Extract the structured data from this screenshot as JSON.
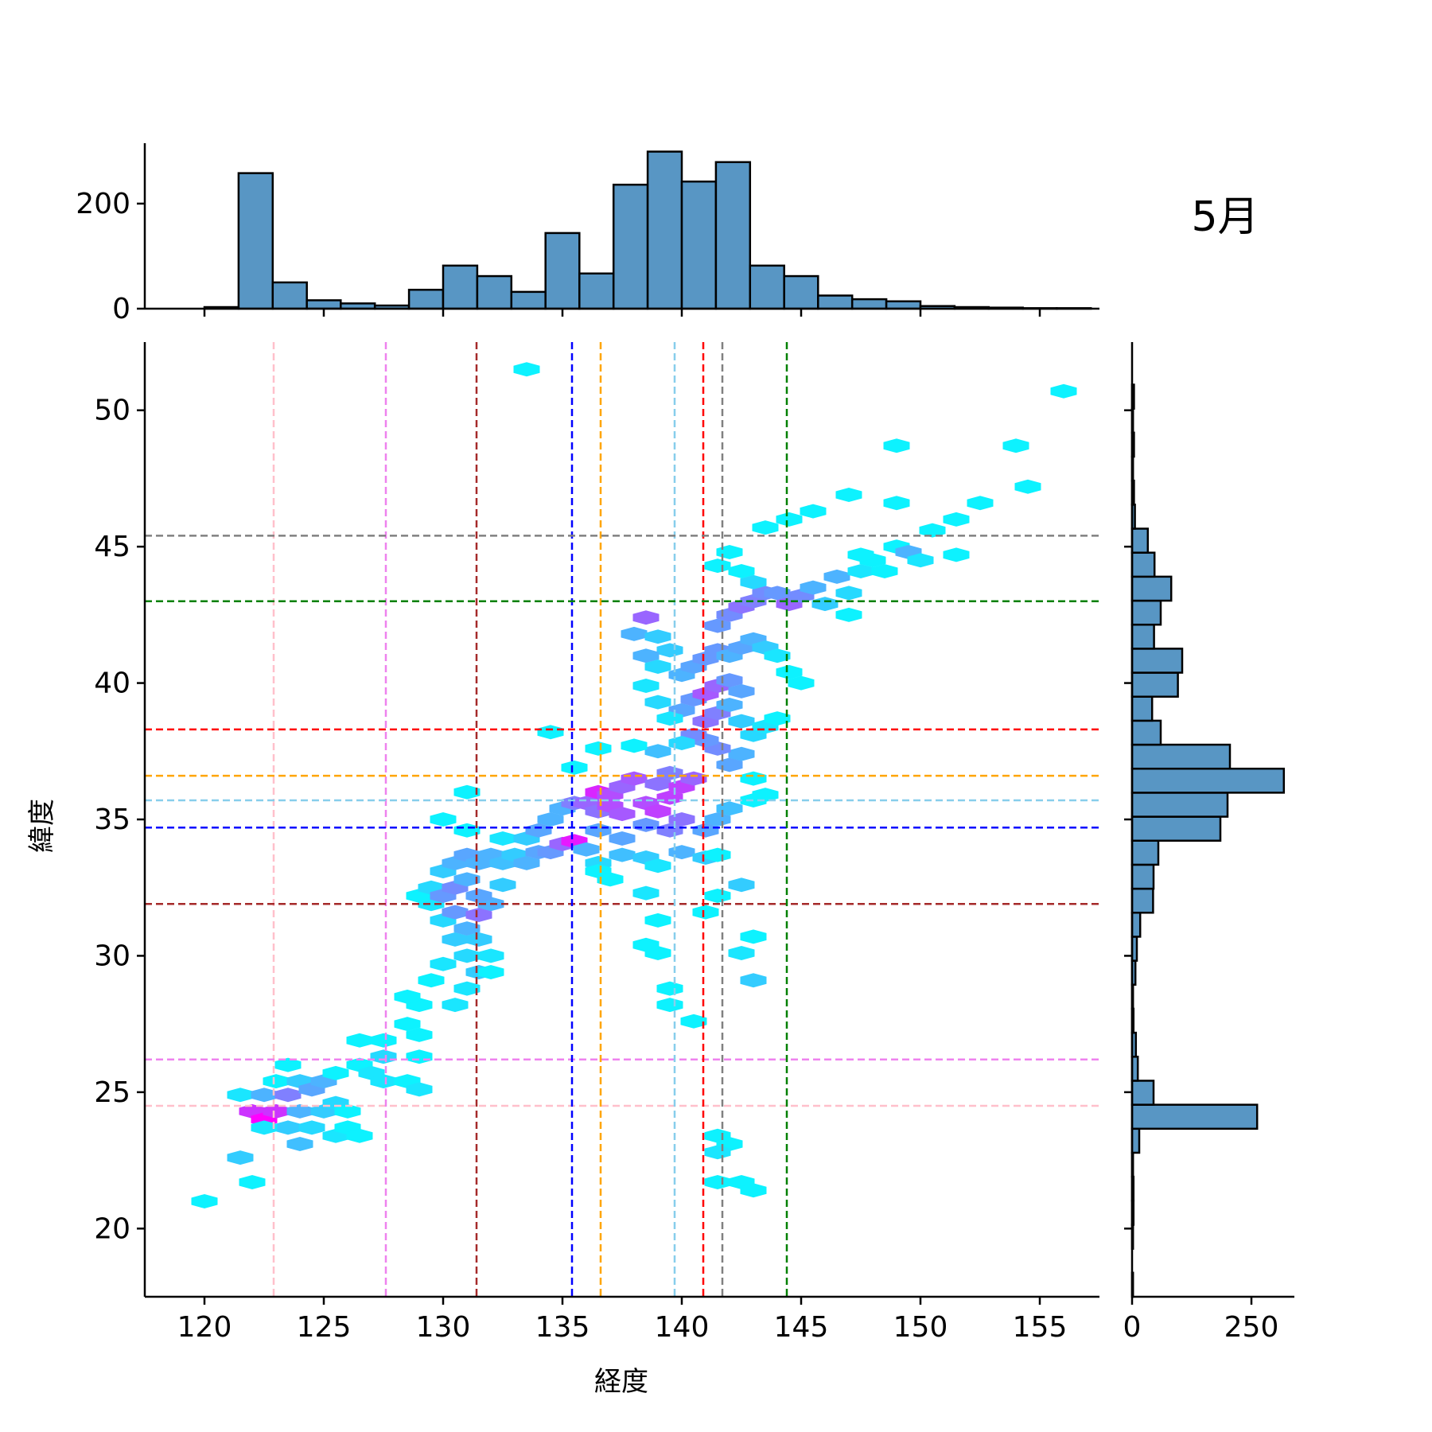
{
  "chart_data": {
    "type": "heatmap",
    "subtype": "jointplot-hexbin-with-marginal-histograms",
    "panel_label": "5月",
    "xlabel": "経度",
    "ylabel": "緯度",
    "xlim": [
      117.5,
      157.5
    ],
    "ylim": [
      17.5,
      52.5
    ],
    "xticks": [
      "120",
      "125",
      "130",
      "135",
      "140",
      "145",
      "150",
      "155"
    ],
    "yticks": [
      "20",
      "25",
      "30",
      "35",
      "40",
      "45",
      "50"
    ],
    "grid": false,
    "colormap": "cool",
    "colors": {
      "bar_fill": "#5896c4",
      "bar_edge": "#000000",
      "low": "#00ffff",
      "high": "#ff00ff"
    },
    "top_histogram": {
      "yticks": [
        "0",
        "200"
      ],
      "ylim": [
        0,
        315
      ],
      "bin_edges": [
        120.0,
        121.43,
        122.86,
        124.29,
        125.71,
        127.14,
        128.57,
        130.0,
        131.43,
        132.86,
        134.29,
        135.71,
        137.14,
        138.57,
        140.0,
        141.43,
        142.86,
        144.29,
        145.71,
        147.14,
        148.57,
        150.0,
        151.43,
        152.86,
        154.29,
        155.71,
        157.14
      ],
      "counts": [
        3,
        258,
        50,
        16,
        10,
        6,
        36,
        82,
        62,
        32,
        144,
        67,
        236,
        299,
        242,
        279,
        82,
        62,
        25,
        18,
        14,
        5,
        3,
        2,
        1,
        1
      ]
    },
    "right_histogram": {
      "xticks": [
        "0",
        "250"
      ],
      "xlim": [
        0,
        340
      ],
      "bin_edges": [
        17.5,
        18.38,
        19.26,
        20.14,
        21.02,
        21.9,
        22.78,
        23.66,
        24.54,
        25.42,
        26.3,
        27.18,
        28.06,
        28.94,
        29.82,
        30.7,
        31.58,
        32.46,
        33.34,
        34.22,
        35.1,
        35.98,
        36.86,
        37.74,
        38.62,
        39.5,
        40.38,
        41.26,
        42.14,
        43.02,
        43.9,
        44.78,
        45.66,
        46.54,
        47.42,
        48.3,
        49.18,
        50.06,
        50.94
      ],
      "counts": [
        2,
        0,
        2,
        3,
        3,
        2,
        15,
        262,
        45,
        12,
        8,
        3,
        2,
        7,
        10,
        17,
        44,
        45,
        55,
        185,
        200,
        318,
        205,
        60,
        42,
        96,
        105,
        46,
        60,
        82,
        47,
        33,
        6,
        4,
        2,
        4,
        2,
        4
      ]
    },
    "reference_lines": [
      {
        "color": "#ffc0cb",
        "lon": 122.9,
        "lat": 24.5
      },
      {
        "color": "#ee82ee",
        "lon": 127.6,
        "lat": 26.2
      },
      {
        "color": "#a52a2a",
        "lon": 131.4,
        "lat": 31.9
      },
      {
        "color": "#0000ff",
        "lon": 135.4,
        "lat": 34.7
      },
      {
        "color": "#ffa500",
        "lon": 136.6,
        "lat": 36.6
      },
      {
        "color": "#87ceeb",
        "lon": 139.7,
        "lat": 35.7
      },
      {
        "color": "#ff0000",
        "lon": 140.9,
        "lat": 38.3
      },
      {
        "color": "#808080",
        "lon": 141.7,
        "lat": 45.4
      },
      {
        "color": "#008000",
        "lon": 144.4,
        "lat": 43.0
      }
    ],
    "hexbin_points": [
      [
        120.0,
        21.0,
        0.05
      ],
      [
        122.0,
        21.7,
        0.05
      ],
      [
        121.5,
        22.6,
        0.2
      ],
      [
        121.5,
        24.9,
        0.1
      ],
      [
        122.0,
        24.3,
        0.8
      ],
      [
        122.5,
        24.0,
        1.0
      ],
      [
        123.0,
        24.3,
        0.8
      ],
      [
        122.5,
        24.9,
        0.3
      ],
      [
        123.5,
        24.9,
        0.5
      ],
      [
        123.0,
        25.4,
        0.05
      ],
      [
        124.0,
        25.4,
        0.2
      ],
      [
        124.5,
        25.1,
        0.35
      ],
      [
        125.0,
        25.4,
        0.3
      ],
      [
        124.0,
        24.3,
        0.3
      ],
      [
        125.0,
        24.3,
        0.2
      ],
      [
        125.5,
        24.6,
        0.15
      ],
      [
        123.5,
        23.7,
        0.2
      ],
      [
        124.5,
        23.7,
        0.15
      ],
      [
        122.5,
        23.7,
        0.1
      ],
      [
        124.0,
        23.1,
        0.25
      ],
      [
        125.5,
        23.4,
        0.1
      ],
      [
        126.0,
        23.7,
        0.05
      ],
      [
        126.5,
        23.4,
        0.05
      ],
      [
        126.0,
        24.3,
        0.05
      ],
      [
        123.5,
        26.0,
        0.05
      ],
      [
        125.5,
        25.7,
        0.05
      ],
      [
        126.5,
        26.0,
        0.05
      ],
      [
        127.0,
        25.7,
        0.1
      ],
      [
        127.5,
        25.4,
        0.1
      ],
      [
        128.5,
        25.4,
        0.05
      ],
      [
        129.0,
        25.1,
        0.1
      ],
      [
        126.5,
        26.9,
        0.05
      ],
      [
        127.5,
        26.9,
        0.05
      ],
      [
        127.5,
        26.3,
        0.15
      ],
      [
        129.0,
        26.3,
        0.05
      ],
      [
        129.0,
        27.1,
        0.05
      ],
      [
        128.5,
        27.5,
        0.05
      ],
      [
        129.0,
        28.2,
        0.05
      ],
      [
        128.5,
        28.5,
        0.05
      ],
      [
        129.5,
        29.1,
        0.05
      ],
      [
        130.0,
        29.7,
        0.1
      ],
      [
        130.5,
        28.2,
        0.1
      ],
      [
        131.0,
        28.8,
        0.1
      ],
      [
        131.5,
        29.4,
        0.2
      ],
      [
        132.0,
        29.4,
        0.05
      ],
      [
        131.0,
        30.0,
        0.15
      ],
      [
        132.0,
        30.0,
        0.1
      ],
      [
        130.5,
        30.6,
        0.2
      ],
      [
        131.0,
        31.0,
        0.3
      ],
      [
        131.5,
        30.6,
        0.2
      ],
      [
        130.0,
        31.3,
        0.15
      ],
      [
        130.5,
        31.6,
        0.4
      ],
      [
        131.5,
        31.5,
        0.55
      ],
      [
        132.0,
        31.9,
        0.3
      ],
      [
        129.5,
        31.9,
        0.1
      ],
      [
        129.0,
        32.2,
        0.05
      ],
      [
        129.5,
        32.5,
        0.15
      ],
      [
        130.0,
        32.2,
        0.4
      ],
      [
        130.5,
        32.5,
        0.45
      ],
      [
        131.0,
        32.8,
        0.3
      ],
      [
        131.5,
        32.2,
        0.35
      ],
      [
        132.5,
        32.6,
        0.2
      ],
      [
        130.0,
        33.1,
        0.2
      ],
      [
        130.5,
        33.4,
        0.3
      ],
      [
        131.0,
        33.7,
        0.35
      ],
      [
        131.5,
        33.4,
        0.3
      ],
      [
        132.0,
        33.7,
        0.3
      ],
      [
        132.5,
        33.4,
        0.25
      ],
      [
        133.0,
        33.7,
        0.2
      ],
      [
        133.5,
        33.4,
        0.3
      ],
      [
        134.0,
        33.8,
        0.35
      ],
      [
        134.5,
        33.8,
        0.4
      ],
      [
        135.0,
        34.1,
        0.6
      ],
      [
        135.5,
        34.2,
        0.9
      ],
      [
        132.5,
        34.3,
        0.1
      ],
      [
        133.5,
        34.3,
        0.2
      ],
      [
        134.0,
        34.6,
        0.35
      ],
      [
        134.5,
        35.0,
        0.3
      ],
      [
        131.0,
        34.6,
        0.05
      ],
      [
        130.0,
        35.0,
        0.05
      ],
      [
        131.0,
        36.0,
        0.05
      ],
      [
        135.0,
        35.4,
        0.3
      ],
      [
        135.5,
        35.6,
        0.5
      ],
      [
        136.0,
        35.6,
        0.6
      ],
      [
        136.5,
        35.3,
        0.55
      ],
      [
        136.5,
        36.0,
        0.85
      ],
      [
        137.0,
        35.5,
        0.7
      ],
      [
        137.5,
        35.2,
        0.65
      ],
      [
        137.0,
        35.9,
        0.7
      ],
      [
        137.5,
        36.2,
        0.6
      ],
      [
        138.0,
        36.5,
        0.65
      ],
      [
        138.5,
        35.6,
        0.7
      ],
      [
        139.0,
        35.3,
        0.75
      ],
      [
        139.5,
        35.8,
        0.75
      ],
      [
        139.0,
        36.3,
        0.55
      ],
      [
        139.5,
        36.7,
        0.5
      ],
      [
        140.0,
        36.2,
        0.75
      ],
      [
        140.5,
        36.5,
        0.6
      ],
      [
        140.0,
        35.0,
        0.55
      ],
      [
        139.5,
        34.6,
        0.5
      ],
      [
        138.5,
        34.8,
        0.4
      ],
      [
        137.5,
        34.3,
        0.35
      ],
      [
        136.5,
        34.6,
        0.35
      ],
      [
        136.0,
        33.9,
        0.3
      ],
      [
        136.5,
        33.4,
        0.15
      ],
      [
        137.5,
        33.7,
        0.25
      ],
      [
        138.5,
        33.6,
        0.2
      ],
      [
        139.0,
        33.3,
        0.1
      ],
      [
        140.0,
        33.8,
        0.3
      ],
      [
        141.0,
        33.6,
        0.2
      ],
      [
        141.5,
        33.7,
        0.05
      ],
      [
        141.0,
        34.6,
        0.35
      ],
      [
        141.5,
        35.0,
        0.3
      ],
      [
        142.0,
        35.4,
        0.25
      ],
      [
        143.0,
        35.7,
        0.05
      ],
      [
        143.5,
        35.9,
        0.05
      ],
      [
        143.0,
        36.5,
        0.05
      ],
      [
        142.0,
        37.0,
        0.35
      ],
      [
        142.5,
        37.4,
        0.3
      ],
      [
        141.5,
        37.6,
        0.45
      ],
      [
        141.0,
        37.9,
        0.4
      ],
      [
        140.5,
        38.1,
        0.45
      ],
      [
        141.0,
        38.6,
        0.55
      ],
      [
        141.5,
        38.9,
        0.5
      ],
      [
        140.0,
        39.0,
        0.35
      ],
      [
        140.5,
        39.4,
        0.4
      ],
      [
        141.0,
        39.6,
        0.65
      ],
      [
        141.5,
        39.9,
        0.6
      ],
      [
        142.0,
        40.1,
        0.4
      ],
      [
        142.5,
        39.7,
        0.35
      ],
      [
        142.0,
        39.2,
        0.3
      ],
      [
        142.5,
        38.6,
        0.2
      ],
      [
        143.0,
        38.1,
        0.15
      ],
      [
        143.5,
        38.4,
        0.1
      ],
      [
        144.0,
        38.7,
        0.05
      ],
      [
        140.0,
        40.3,
        0.3
      ],
      [
        140.5,
        40.6,
        0.35
      ],
      [
        141.0,
        40.9,
        0.4
      ],
      [
        141.5,
        41.2,
        0.4
      ],
      [
        142.0,
        41.0,
        0.3
      ],
      [
        142.5,
        41.3,
        0.35
      ],
      [
        143.0,
        41.6,
        0.3
      ],
      [
        143.5,
        41.3,
        0.2
      ],
      [
        144.0,
        41.0,
        0.1
      ],
      [
        144.5,
        40.4,
        0.05
      ],
      [
        145.0,
        40.0,
        0.05
      ],
      [
        138.5,
        42.4,
        0.6
      ],
      [
        138.0,
        41.8,
        0.3
      ],
      [
        139.0,
        41.7,
        0.2
      ],
      [
        139.5,
        41.2,
        0.2
      ],
      [
        138.5,
        41.0,
        0.3
      ],
      [
        139.0,
        40.6,
        0.15
      ],
      [
        138.5,
        39.9,
        0.1
      ],
      [
        139.0,
        39.3,
        0.15
      ],
      [
        139.5,
        38.7,
        0.1
      ],
      [
        140.0,
        37.8,
        0.15
      ],
      [
        139.0,
        37.5,
        0.25
      ],
      [
        138.0,
        37.7,
        0.05
      ],
      [
        136.5,
        37.6,
        0.05
      ],
      [
        135.5,
        36.9,
        0.05
      ],
      [
        134.5,
        38.2,
        0.05
      ],
      [
        141.5,
        42.1,
        0.4
      ],
      [
        142.0,
        42.5,
        0.45
      ],
      [
        142.5,
        42.8,
        0.55
      ],
      [
        143.0,
        43.0,
        0.5
      ],
      [
        143.5,
        43.3,
        0.45
      ],
      [
        144.0,
        43.3,
        0.4
      ],
      [
        144.5,
        42.9,
        0.6
      ],
      [
        145.0,
        43.2,
        0.45
      ],
      [
        145.5,
        43.5,
        0.3
      ],
      [
        146.0,
        42.9,
        0.2
      ],
      [
        146.5,
        43.9,
        0.3
      ],
      [
        147.0,
        43.3,
        0.15
      ],
      [
        143.0,
        43.7,
        0.15
      ],
      [
        142.5,
        44.1,
        0.05
      ],
      [
        141.5,
        44.3,
        0.05
      ],
      [
        142.0,
        44.8,
        0.05
      ],
      [
        147.5,
        44.1,
        0.1
      ],
      [
        148.0,
        44.5,
        0.05
      ],
      [
        147.0,
        42.5,
        0.05
      ],
      [
        148.5,
        44.1,
        0.05
      ],
      [
        149.0,
        45.0,
        0.05
      ],
      [
        149.5,
        44.8,
        0.3
      ],
      [
        150.0,
        44.5,
        0.1
      ],
      [
        151.5,
        44.7,
        0.05
      ],
      [
        147.5,
        44.7,
        0.05
      ],
      [
        143.5,
        45.7,
        0.05
      ],
      [
        144.5,
        46.0,
        0.05
      ],
      [
        145.5,
        46.3,
        0.05
      ],
      [
        147.0,
        46.9,
        0.05
      ],
      [
        149.0,
        46.6,
        0.05
      ],
      [
        150.5,
        45.6,
        0.05
      ],
      [
        151.5,
        46.0,
        0.05
      ],
      [
        152.5,
        46.6,
        0.05
      ],
      [
        154.5,
        47.2,
        0.05
      ],
      [
        149.0,
        48.7,
        0.05
      ],
      [
        154.0,
        48.7,
        0.05
      ],
      [
        156.0,
        50.7,
        0.05
      ],
      [
        133.5,
        51.5,
        0.05
      ],
      [
        136.5,
        33.1,
        0.05
      ],
      [
        137.0,
        32.8,
        0.05
      ],
      [
        138.5,
        32.3,
        0.1
      ],
      [
        141.5,
        32.2,
        0.05
      ],
      [
        142.5,
        32.6,
        0.2
      ],
      [
        141.0,
        31.6,
        0.05
      ],
      [
        139.0,
        31.3,
        0.05
      ],
      [
        143.0,
        30.7,
        0.05
      ],
      [
        142.5,
        30.1,
        0.1
      ],
      [
        143.0,
        29.1,
        0.2
      ],
      [
        139.0,
        30.1,
        0.05
      ],
      [
        138.5,
        30.4,
        0.05
      ],
      [
        139.5,
        28.8,
        0.05
      ],
      [
        139.5,
        28.2,
        0.05
      ],
      [
        140.5,
        27.6,
        0.05
      ],
      [
        141.5,
        23.4,
        0.05
      ],
      [
        142.0,
        23.1,
        0.05
      ],
      [
        141.5,
        22.8,
        0.1
      ],
      [
        141.5,
        21.7,
        0.05
      ],
      [
        142.5,
        21.7,
        0.05
      ],
      [
        143.0,
        21.4,
        0.05
      ]
    ]
  }
}
